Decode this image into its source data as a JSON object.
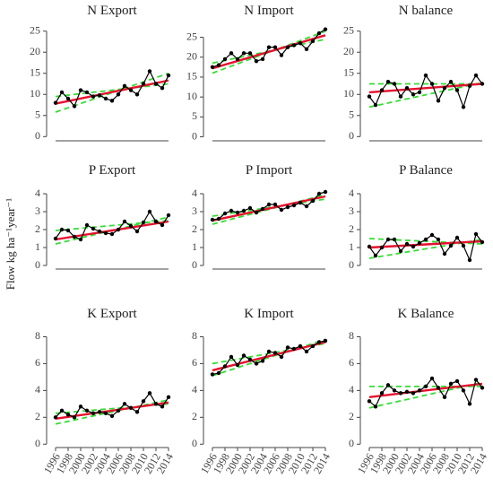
{
  "y_label": "Flow kg ha⁻¹year⁻¹",
  "chart_data": [
    {
      "type": "line",
      "title": "N Export",
      "x": [
        1996,
        1997,
        1998,
        1999,
        2000,
        2001,
        2002,
        2003,
        2004,
        2005,
        2006,
        2007,
        2008,
        2009,
        2010,
        2011,
        2012,
        2013,
        2014
      ],
      "xlim": [
        1996,
        2014
      ],
      "ylim": [
        -1,
        26
      ],
      "yticks": [
        0,
        5,
        10,
        15,
        20,
        25
      ],
      "series": [
        {
          "color": "#000000",
          "marker": "o",
          "linestyle": "solid",
          "values": [
            8,
            10.5,
            9,
            7.2,
            11,
            10.5,
            9.5,
            9.8,
            9,
            8.5,
            10,
            12,
            11,
            10,
            12.5,
            15.5,
            12.5,
            11.5,
            14.5
          ]
        },
        {
          "color": "#e8102e",
          "linestyle": "solid",
          "x": [
            1996,
            2014
          ],
          "values": [
            7.8,
            13.3
          ]
        },
        {
          "color": "#33dd33",
          "linestyle": "dashed",
          "x": [
            1996,
            2014
          ],
          "values": [
            9.5,
            12.5
          ]
        },
        {
          "color": "#33dd33",
          "linestyle": "dashed",
          "x": [
            1996,
            2014
          ],
          "values": [
            5.8,
            15
          ]
        }
      ]
    },
    {
      "type": "line",
      "title": "N Import",
      "x": [
        1996,
        1997,
        1998,
        1999,
        2000,
        2001,
        2002,
        2003,
        2004,
        2005,
        2006,
        2007,
        2008,
        2009,
        2010,
        2011,
        2012,
        2013,
        2014
      ],
      "xlim": [
        1996,
        2014
      ],
      "ylim": [
        -1,
        27.6
      ],
      "yticks": [
        0,
        5,
        10,
        15,
        20,
        25
      ],
      "series": [
        {
          "color": "#000000",
          "marker": "o",
          "linestyle": "solid",
          "values": [
            17.5,
            18,
            19.5,
            21,
            19.5,
            21,
            21,
            19,
            19.5,
            22.5,
            22.5,
            20.5,
            22.5,
            23,
            23.5,
            22,
            24,
            26,
            27
          ]
        },
        {
          "color": "#e8102e",
          "linestyle": "solid",
          "x": [
            1996,
            2014
          ],
          "values": [
            17.2,
            25.5
          ]
        },
        {
          "color": "#33dd33",
          "linestyle": "dashed",
          "x": [
            1996,
            2014
          ],
          "values": [
            18.5,
            24.5
          ]
        },
        {
          "color": "#33dd33",
          "linestyle": "dashed",
          "x": [
            1996,
            2014
          ],
          "values": [
            16,
            26.5
          ]
        }
      ]
    },
    {
      "type": "line",
      "title": "N balance",
      "x": [
        1996,
        1997,
        1998,
        1999,
        2000,
        2001,
        2002,
        2003,
        2004,
        2005,
        2006,
        2007,
        2008,
        2009,
        2010,
        2011,
        2012,
        2013,
        2014
      ],
      "xlim": [
        1996,
        2014
      ],
      "ylim": [
        -1,
        26
      ],
      "yticks": [
        0,
        5,
        10,
        15,
        20,
        25
      ],
      "series": [
        {
          "color": "#000000",
          "marker": "o",
          "linestyle": "solid",
          "values": [
            9.5,
            7.5,
            11,
            13,
            12.5,
            9.5,
            11.5,
            10,
            10.5,
            14.5,
            12.5,
            8.5,
            11.5,
            13,
            11,
            7,
            12,
            14.5,
            12.5
          ]
        },
        {
          "color": "#e8102e",
          "linestyle": "solid",
          "x": [
            1996,
            2014
          ],
          "values": [
            10.5,
            12.5
          ]
        },
        {
          "color": "#33dd33",
          "linestyle": "dashed",
          "x": [
            1996,
            2014
          ],
          "values": [
            12.5,
            12.5
          ]
        },
        {
          "color": "#33dd33",
          "linestyle": "dashed",
          "x": [
            1996,
            2014
          ],
          "values": [
            7,
            12.8
          ]
        }
      ]
    },
    {
      "type": "line",
      "title": "P Export",
      "x": [
        1996,
        1997,
        1998,
        1999,
        2000,
        2001,
        2002,
        2003,
        2004,
        2005,
        2006,
        2007,
        2008,
        2009,
        2010,
        2011,
        2012,
        2013,
        2014
      ],
      "xlim": [
        1996,
        2014
      ],
      "ylim": [
        -0.2,
        4.4
      ],
      "yticks": [
        0,
        1,
        2,
        3,
        4
      ],
      "series": [
        {
          "color": "#000000",
          "marker": "o",
          "linestyle": "solid",
          "values": [
            1.5,
            2,
            1.95,
            1.6,
            1.45,
            2.25,
            2.05,
            1.9,
            1.8,
            1.75,
            2,
            2.45,
            2.2,
            1.9,
            2.4,
            3,
            2.45,
            2.25,
            2.8
          ]
        },
        {
          "color": "#e8102e",
          "linestyle": "solid",
          "x": [
            1996,
            2014
          ],
          "values": [
            1.45,
            2.45
          ]
        },
        {
          "color": "#33dd33",
          "linestyle": "dashed",
          "x": [
            1996,
            2014
          ],
          "values": [
            1.95,
            2.5
          ]
        },
        {
          "color": "#33dd33",
          "linestyle": "dashed",
          "x": [
            1996,
            2014
          ],
          "values": [
            1.2,
            2.7
          ]
        }
      ]
    },
    {
      "type": "line",
      "title": "P Import",
      "x": [
        1996,
        1997,
        1998,
        1999,
        2000,
        2001,
        2002,
        2003,
        2004,
        2005,
        2006,
        2007,
        2008,
        2009,
        2010,
        2011,
        2012,
        2013,
        2014
      ],
      "xlim": [
        1996,
        2014
      ],
      "ylim": [
        -0.2,
        4.4
      ],
      "yticks": [
        0,
        1,
        2,
        3,
        4
      ],
      "series": [
        {
          "color": "#000000",
          "marker": "o",
          "linestyle": "solid",
          "values": [
            2.55,
            2.6,
            2.9,
            3.05,
            2.95,
            3.05,
            3.2,
            2.95,
            3.15,
            3.4,
            3.4,
            3.1,
            3.25,
            3.35,
            3.5,
            3.3,
            3.6,
            4,
            4.1
          ]
        },
        {
          "color": "#e8102e",
          "linestyle": "solid",
          "x": [
            1996,
            2014
          ],
          "values": [
            2.5,
            3.85
          ]
        },
        {
          "color": "#33dd33",
          "linestyle": "dashed",
          "x": [
            1996,
            2014
          ],
          "values": [
            2.75,
            3.7
          ]
        },
        {
          "color": "#33dd33",
          "linestyle": "dashed",
          "x": [
            1996,
            2014
          ],
          "values": [
            2.3,
            3.95
          ]
        }
      ]
    },
    {
      "type": "line",
      "title": "P Balance",
      "x": [
        1996,
        1997,
        1998,
        1999,
        2000,
        2001,
        2002,
        2003,
        2004,
        2005,
        2006,
        2007,
        2008,
        2009,
        2010,
        2011,
        2012,
        2013,
        2014
      ],
      "xlim": [
        1996,
        2014
      ],
      "ylim": [
        -0.2,
        4.4
      ],
      "yticks": [
        0,
        1,
        2,
        3,
        4
      ],
      "series": [
        {
          "color": "#000000",
          "marker": "o",
          "linestyle": "solid",
          "values": [
            1.05,
            0.55,
            1,
            1.45,
            1.45,
            0.8,
            1.2,
            1.05,
            1.25,
            1.45,
            1.7,
            1.45,
            0.65,
            1.1,
            1.55,
            1.1,
            0.3,
            1.75,
            1.3
          ]
        },
        {
          "color": "#e8102e",
          "linestyle": "solid",
          "x": [
            1996,
            2014
          ],
          "values": [
            1.0,
            1.35
          ]
        },
        {
          "color": "#33dd33",
          "linestyle": "dashed",
          "x": [
            1996,
            2014
          ],
          "values": [
            1.5,
            1.2
          ]
        },
        {
          "color": "#33dd33",
          "linestyle": "dashed",
          "x": [
            1996,
            2014
          ],
          "values": [
            0.4,
            1.45
          ]
        }
      ]
    },
    {
      "type": "line",
      "title": "K Export",
      "x": [
        1996,
        1997,
        1998,
        1999,
        2000,
        2001,
        2002,
        2003,
        2004,
        2005,
        2006,
        2007,
        2008,
        2009,
        2010,
        2011,
        2012,
        2013,
        2014
      ],
      "xlim": [
        1996,
        2014
      ],
      "ylim": [
        -0.25,
        8.5
      ],
      "yticks": [
        0,
        2,
        4,
        6,
        8
      ],
      "xticks": [
        1996,
        1998,
        2000,
        2002,
        2004,
        2006,
        2008,
        2010,
        2012,
        2014
      ],
      "series": [
        {
          "color": "#000000",
          "marker": "o",
          "linestyle": "solid",
          "values": [
            2,
            2.5,
            2.2,
            2,
            2.8,
            2.5,
            2.3,
            2.4,
            2.3,
            2.1,
            2.5,
            3,
            2.7,
            2.4,
            3.2,
            3.8,
            3,
            2.8,
            3.5
          ]
        },
        {
          "color": "#e8102e",
          "linestyle": "solid",
          "x": [
            1996,
            2014
          ],
          "values": [
            1.9,
            3.1
          ]
        },
        {
          "color": "#33dd33",
          "linestyle": "dashed",
          "x": [
            1996,
            2014
          ],
          "values": [
            2.3,
            3
          ]
        },
        {
          "color": "#33dd33",
          "linestyle": "dashed",
          "x": [
            1996,
            2014
          ],
          "values": [
            1.5,
            3.3
          ]
        }
      ]
    },
    {
      "type": "line",
      "title": "K Import",
      "x": [
        1996,
        1997,
        1998,
        1999,
        2000,
        2001,
        2002,
        2003,
        2004,
        2005,
        2006,
        2007,
        2008,
        2009,
        2010,
        2011,
        2012,
        2013,
        2014
      ],
      "xlim": [
        1996,
        2014
      ],
      "ylim": [
        -0.25,
        8.5
      ],
      "yticks": [
        0,
        2,
        4,
        6,
        8
      ],
      "xticks": [
        1996,
        1998,
        2000,
        2002,
        2004,
        2006,
        2008,
        2010,
        2012,
        2014
      ],
      "series": [
        {
          "color": "#000000",
          "marker": "o",
          "linestyle": "solid",
          "values": [
            5.2,
            5.3,
            5.8,
            6.5,
            5.9,
            6.6,
            6.3,
            6,
            6.2,
            6.9,
            6.8,
            6.5,
            7.2,
            7.1,
            7.3,
            6.9,
            7.3,
            7.6,
            7.7
          ]
        },
        {
          "color": "#e8102e",
          "linestyle": "solid",
          "x": [
            1996,
            2014
          ],
          "values": [
            5.5,
            7.6
          ]
        },
        {
          "color": "#33dd33",
          "linestyle": "dashed",
          "x": [
            1996,
            2014
          ],
          "values": [
            6,
            7.5
          ]
        },
        {
          "color": "#33dd33",
          "linestyle": "dashed",
          "x": [
            1996,
            2014
          ],
          "values": [
            5.1,
            7.8
          ]
        }
      ]
    },
    {
      "type": "line",
      "title": "K Balance",
      "x": [
        1996,
        1997,
        1998,
        1999,
        2000,
        2001,
        2002,
        2003,
        2004,
        2005,
        2006,
        2007,
        2008,
        2009,
        2010,
        2011,
        2012,
        2013,
        2014
      ],
      "xlim": [
        1996,
        2014
      ],
      "ylim": [
        -0.25,
        8.5
      ],
      "yticks": [
        0,
        2,
        4,
        6,
        8
      ],
      "xticks": [
        1996,
        1998,
        2000,
        2002,
        2004,
        2006,
        2008,
        2010,
        2012,
        2014
      ],
      "series": [
        {
          "color": "#000000",
          "marker": "o",
          "linestyle": "solid",
          "values": [
            3.2,
            2.8,
            3.8,
            4.4,
            4,
            3.8,
            3.9,
            3.8,
            4,
            4.3,
            4.9,
            4.2,
            3.5,
            4.5,
            4.7,
            4,
            3,
            4.8,
            4.2
          ]
        },
        {
          "color": "#e8102e",
          "linestyle": "solid",
          "x": [
            1996,
            2014
          ],
          "values": [
            3.5,
            4.5
          ]
        },
        {
          "color": "#33dd33",
          "linestyle": "dashed",
          "x": [
            1996,
            2014
          ],
          "values": [
            4.3,
            4.3
          ]
        },
        {
          "color": "#33dd33",
          "linestyle": "dashed",
          "x": [
            1996,
            2014
          ],
          "values": [
            2.7,
            4.6
          ]
        }
      ]
    }
  ]
}
